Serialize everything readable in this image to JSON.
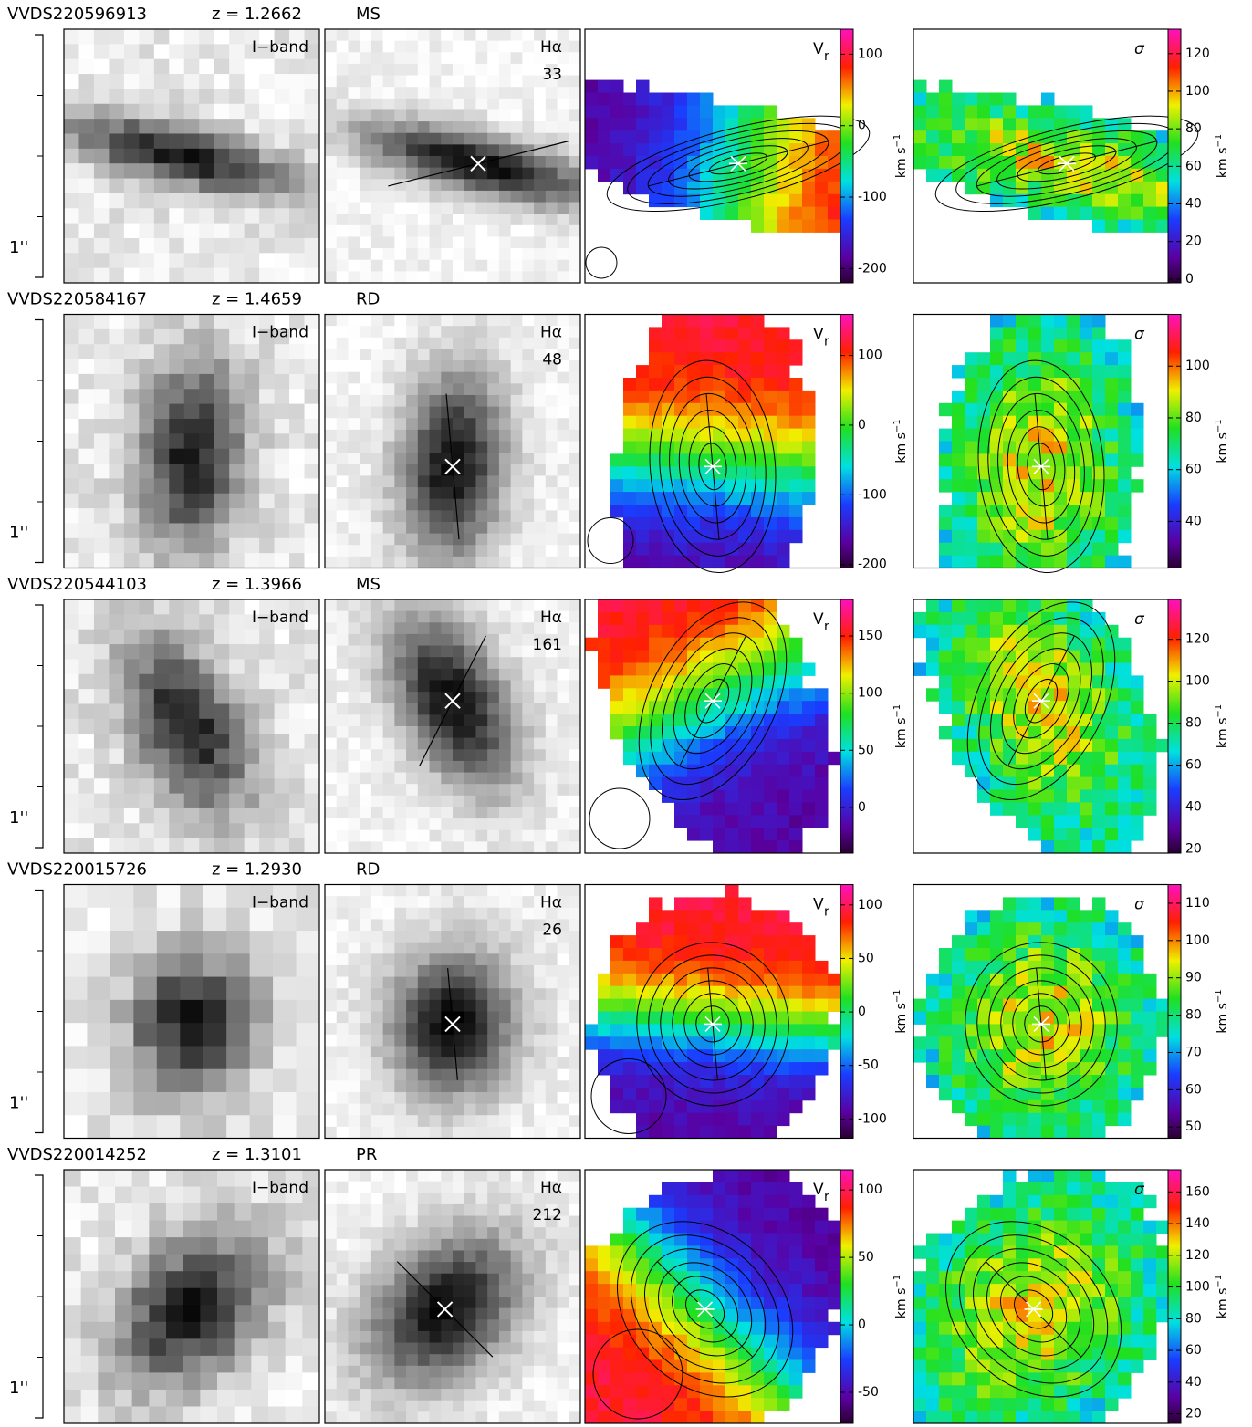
{
  "labels": {
    "iband": "I−band",
    "halpha": "Hα",
    "vr": "V",
    "vr_sub": "r",
    "sigma": "σ",
    "unit": "km s",
    "unit_exp": "−1",
    "scale": "1''"
  },
  "rows": [
    {
      "id": "VVDS220596913",
      "z": "z  =  1.2662",
      "class": "MS",
      "flux": "33",
      "vr": {
        "lim": [
          -220,
          135
        ],
        "ticks": [
          -200,
          -100,
          0,
          100
        ]
      },
      "sigma": {
        "lim": [
          -2,
          133
        ],
        "ticks": [
          0,
          20,
          40,
          60,
          80,
          100,
          120
        ]
      }
    },
    {
      "id": "VVDS220584167",
      "z": "z  =  1.4659",
      "class": "RD",
      "flux": "48",
      "vr": {
        "lim": [
          -205,
          159
        ],
        "ticks": [
          -200,
          -100,
          0,
          100
        ]
      },
      "sigma": {
        "lim": [
          22,
          120
        ],
        "ticks": [
          40,
          60,
          80,
          100
        ]
      }
    },
    {
      "id": "VVDS220544103",
      "z": "z  =  1.3966",
      "class": "MS",
      "flux": "161",
      "vr": {
        "lim": [
          -40,
          182
        ],
        "ticks": [
          0,
          50,
          100,
          150
        ]
      },
      "sigma": {
        "lim": [
          18,
          139
        ],
        "ticks": [
          20,
          40,
          60,
          80,
          100,
          120
        ]
      }
    },
    {
      "id": "VVDS220015726",
      "z": "z  =  1.2930",
      "class": "RD",
      "flux": "26",
      "vr": {
        "lim": [
          -118,
          119
        ],
        "ticks": [
          -100,
          -50,
          0,
          50,
          100
        ]
      },
      "sigma": {
        "lim": [
          47,
          115
        ],
        "ticks": [
          50,
          60,
          70,
          80,
          90,
          100,
          110
        ]
      }
    },
    {
      "id": "VVDS220014252",
      "z": "z  =  1.3101",
      "class": "PR",
      "flux": "212",
      "vr": {
        "lim": [
          -73,
          115
        ],
        "ticks": [
          -50,
          0,
          50,
          100
        ]
      },
      "sigma": {
        "lim": [
          14,
          174
        ],
        "ticks": [
          20,
          40,
          60,
          80,
          100,
          120,
          140,
          160
        ]
      }
    }
  ]
}
